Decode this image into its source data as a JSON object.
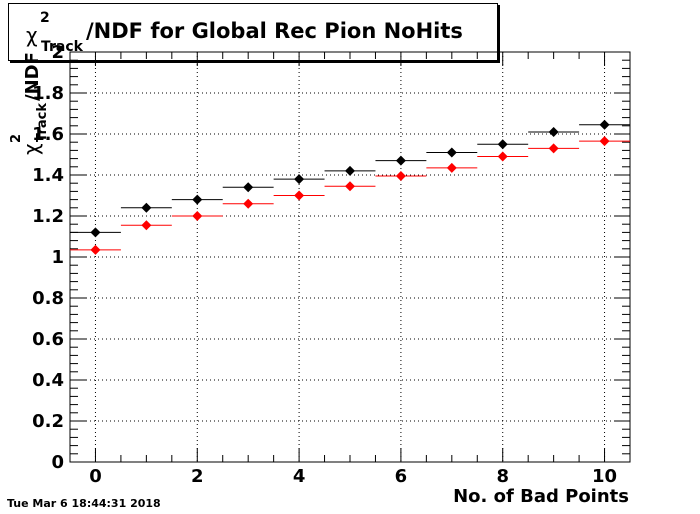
{
  "chart_data": {
    "type": "scatter",
    "title": "/NDF for Global Rec Pion NoHits",
    "title_symbol": "χ",
    "title_superscript": "2",
    "title_subscript": "Track",
    "xlabel": "No. of Bad Points",
    "ylabel_symbol": "χ",
    "ylabel_superscript": "2",
    "ylabel_subscript": "Track",
    "ylabel_suffix": "/NDF",
    "xlim": [
      -0.5,
      10.5
    ],
    "ylim": [
      0,
      2.0
    ],
    "x_ticks": [
      "0",
      "2",
      "4",
      "6",
      "8",
      "10"
    ],
    "y_ticks": [
      "0",
      "0.2",
      "0.4",
      "0.6",
      "0.8",
      "1",
      "1.2",
      "1.4",
      "1.6",
      "1.8",
      "2"
    ],
    "grid": true,
    "x": [
      0,
      1,
      2,
      3,
      4,
      5,
      6,
      7,
      8,
      9,
      10
    ],
    "bin_width": 1,
    "series": [
      {
        "color": "#000000",
        "values": [
          1.12,
          1.24,
          1.28,
          1.34,
          1.38,
          1.42,
          1.47,
          1.51,
          1.55,
          1.61,
          1.645
        ]
      },
      {
        "color": "#ff0000",
        "values": [
          1.035,
          1.155,
          1.2,
          1.26,
          1.3,
          1.345,
          1.395,
          1.435,
          1.49,
          1.53,
          1.565
        ]
      }
    ]
  },
  "footer": {
    "timestamp": "Tue Mar  6 18:44:31 2018"
  }
}
